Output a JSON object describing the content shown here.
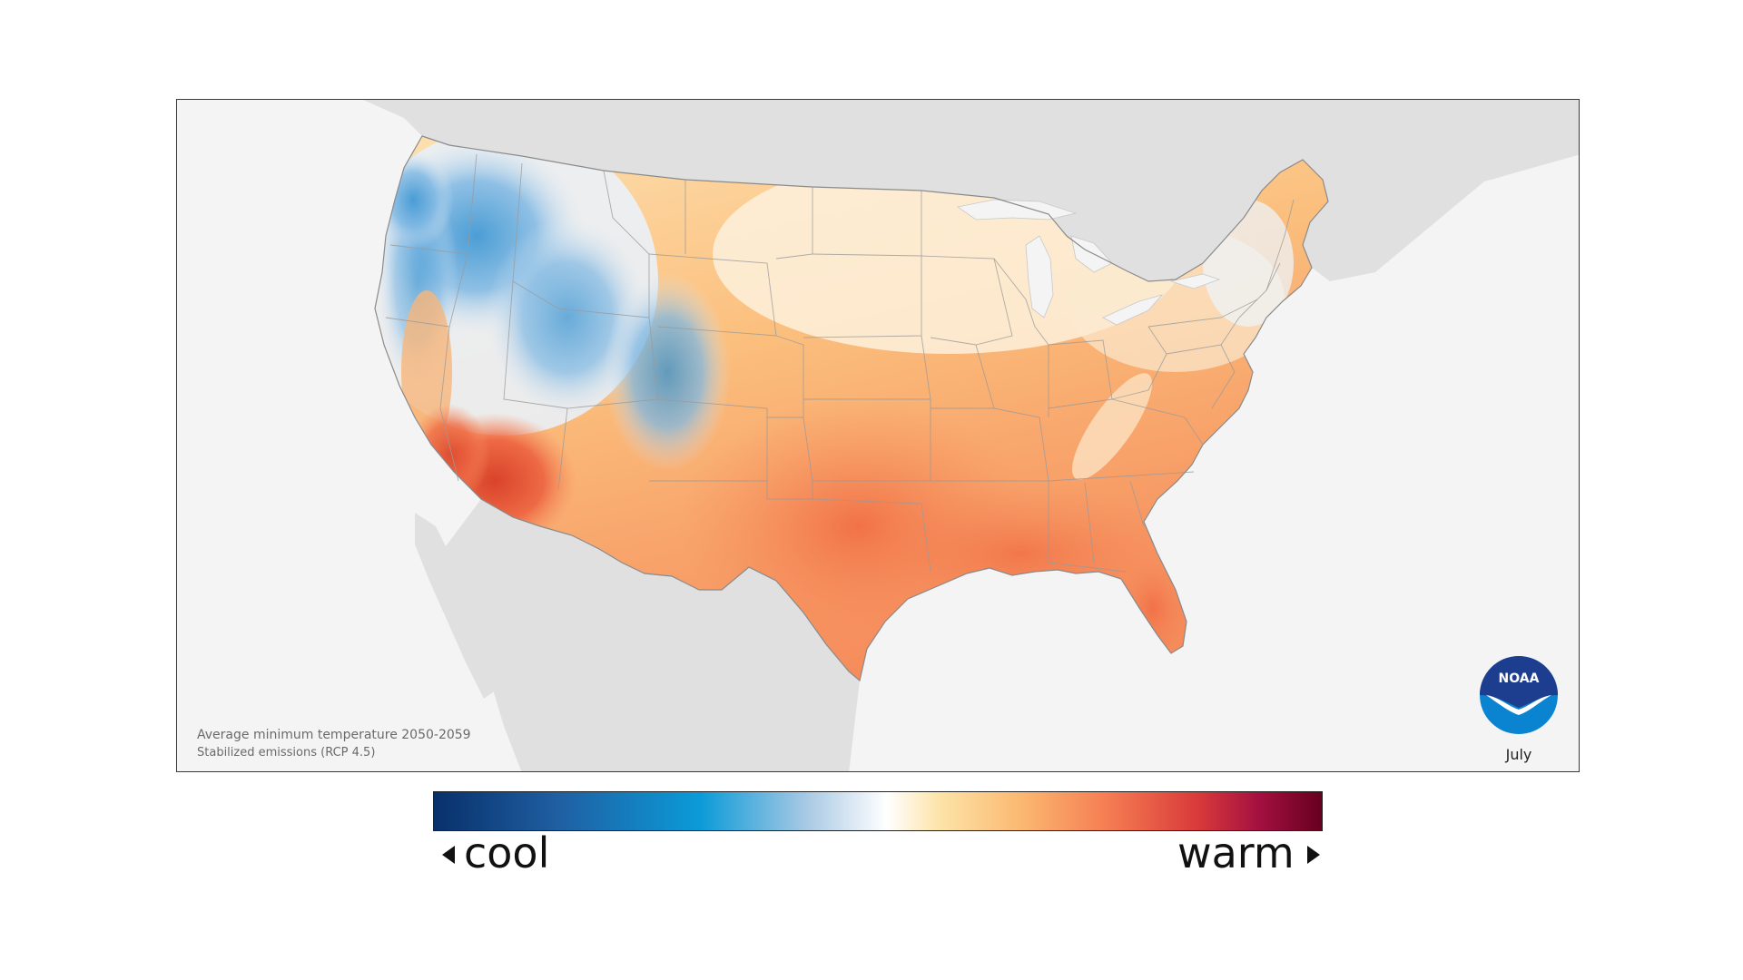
{
  "caption": {
    "line1": "Average minimum temperature 2050-2059",
    "line2": "Stabilized emissions (RCP 4.5)"
  },
  "logo": {
    "text": "NOAA",
    "icon": "noaa-logo-icon",
    "colors": {
      "top": "#1d3d8f",
      "bottom": "#0a84d0"
    }
  },
  "month": "July",
  "legend": {
    "cool": "cool",
    "warm": "warm",
    "colors": [
      "#08306b",
      "#0b9bd8",
      "#ffffff",
      "#fbb971",
      "#f57c52",
      "#d93a3a",
      "#67001f"
    ]
  }
}
